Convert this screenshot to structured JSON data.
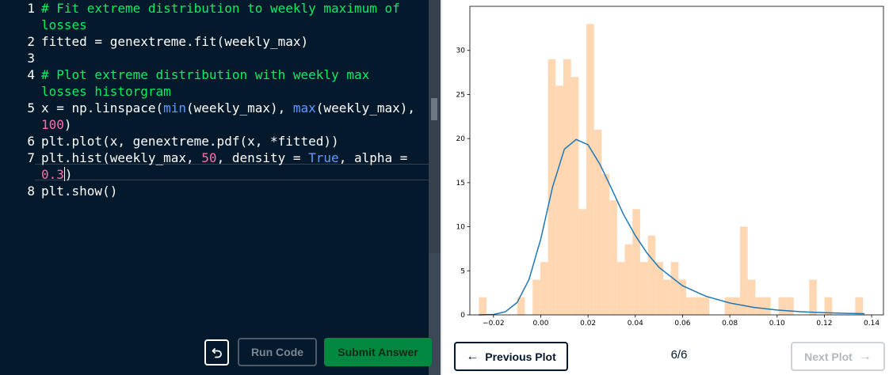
{
  "editor": {
    "lines": [
      {
        "num": "1",
        "segments": [
          {
            "t": "# Fit extreme distribution to weekly maximum of",
            "c": "com"
          }
        ]
      },
      {
        "num": "",
        "segments": [
          {
            "t": "losses",
            "c": "com"
          }
        ]
      },
      {
        "num": "2",
        "segments": [
          {
            "t": "fitted = genextreme.fit(weekly_max)",
            "c": "txt"
          }
        ]
      },
      {
        "num": "3",
        "segments": []
      },
      {
        "num": "4",
        "segments": [
          {
            "t": "# Plot extreme distribution with weekly max",
            "c": "com"
          }
        ]
      },
      {
        "num": "",
        "segments": [
          {
            "t": "losses historgram",
            "c": "com"
          }
        ]
      },
      {
        "num": "5",
        "segments": [
          {
            "t": "x = np.linspace(",
            "c": "txt"
          },
          {
            "t": "min",
            "c": "fn"
          },
          {
            "t": "(weekly_max), ",
            "c": "txt"
          },
          {
            "t": "max",
            "c": "fn"
          },
          {
            "t": "(weekly_max),",
            "c": "txt"
          }
        ]
      },
      {
        "num": "",
        "segments": [
          {
            "t": "100",
            "c": "num"
          },
          {
            "t": ")",
            "c": "txt"
          }
        ]
      },
      {
        "num": "6",
        "segments": [
          {
            "t": "plt.plot(x, genextreme.pdf(x, *fitted))",
            "c": "txt"
          }
        ]
      },
      {
        "num": "7",
        "segments": [
          {
            "t": "plt.hist(weekly_max, ",
            "c": "txt"
          },
          {
            "t": "50",
            "c": "num"
          },
          {
            "t": ", density = ",
            "c": "txt"
          },
          {
            "t": "True",
            "c": "kw"
          },
          {
            "t": ", alpha =",
            "c": "txt"
          }
        ]
      },
      {
        "num": "",
        "segments": [
          {
            "t": "0.3",
            "c": "num"
          },
          {
            "t": ")",
            "c": "txt"
          }
        ]
      },
      {
        "num": "8",
        "segments": [
          {
            "t": "plt.show()",
            "c": "txt"
          }
        ]
      }
    ]
  },
  "actions": {
    "reset_icon": "undo-arrow-icon",
    "run_label": "Run Code",
    "submit_label": "Submit Answer"
  },
  "plot_nav": {
    "prev_label": "Previous Plot",
    "next_label": "Next Plot",
    "page": "6/6"
  },
  "colors": {
    "editor_bg": "#05192d",
    "comment": "#03ef62",
    "number": "#ff6ea9",
    "builtin": "#5f9bff",
    "submit_bg": "#03893f",
    "hist_fill": "#ffd8b3",
    "line": "#1f77b4"
  },
  "chart_data": {
    "type": "bar",
    "title": "",
    "xlabel": "",
    "ylabel": "",
    "xlim": [
      -0.03,
      0.145
    ],
    "ylim": [
      0,
      35
    ],
    "xticks": [
      -0.02,
      0.0,
      0.02,
      0.04,
      0.06,
      0.08,
      0.1,
      0.12,
      0.14
    ],
    "xtick_labels": [
      "−0.02",
      "0.00",
      "0.02",
      "0.04",
      "0.06",
      "0.08",
      "0.10",
      "0.12",
      "0.14"
    ],
    "yticks": [
      0,
      5,
      10,
      15,
      20,
      25,
      30
    ],
    "ytick_labels": [
      "0",
      "5",
      "10",
      "15",
      "20",
      "25",
      "30"
    ],
    "grid": false,
    "histogram": {
      "bin_start": -0.0262,
      "bin_width": 0.00325,
      "heights": [
        2,
        0,
        0,
        0,
        0,
        2,
        0,
        4,
        6,
        29,
        26,
        29,
        27,
        12,
        33,
        21,
        16,
        13,
        6,
        8,
        12,
        6,
        9,
        6,
        4,
        6,
        4,
        2,
        2,
        2,
        0,
        0,
        2,
        2,
        10,
        4,
        2,
        2,
        0,
        2,
        2,
        0,
        0,
        4,
        0,
        2,
        0,
        0,
        0,
        2
      ]
    },
    "series": [
      {
        "x": [
          -0.0262,
          -0.02,
          -0.015,
          -0.01,
          -0.005,
          0.0,
          0.005,
          0.01,
          0.015,
          0.02,
          0.025,
          0.03,
          0.035,
          0.04,
          0.045,
          0.05,
          0.06,
          0.07,
          0.08,
          0.09,
          0.1,
          0.11,
          0.12,
          0.13,
          0.137
        ],
        "y": [
          0.0,
          0.05,
          0.35,
          1.4,
          4.0,
          8.6,
          14.5,
          18.8,
          19.9,
          19.3,
          17.1,
          14.3,
          11.4,
          9.0,
          7.0,
          5.4,
          3.3,
          2.1,
          1.35,
          0.85,
          0.55,
          0.36,
          0.25,
          0.17,
          0.13
        ]
      }
    ]
  }
}
